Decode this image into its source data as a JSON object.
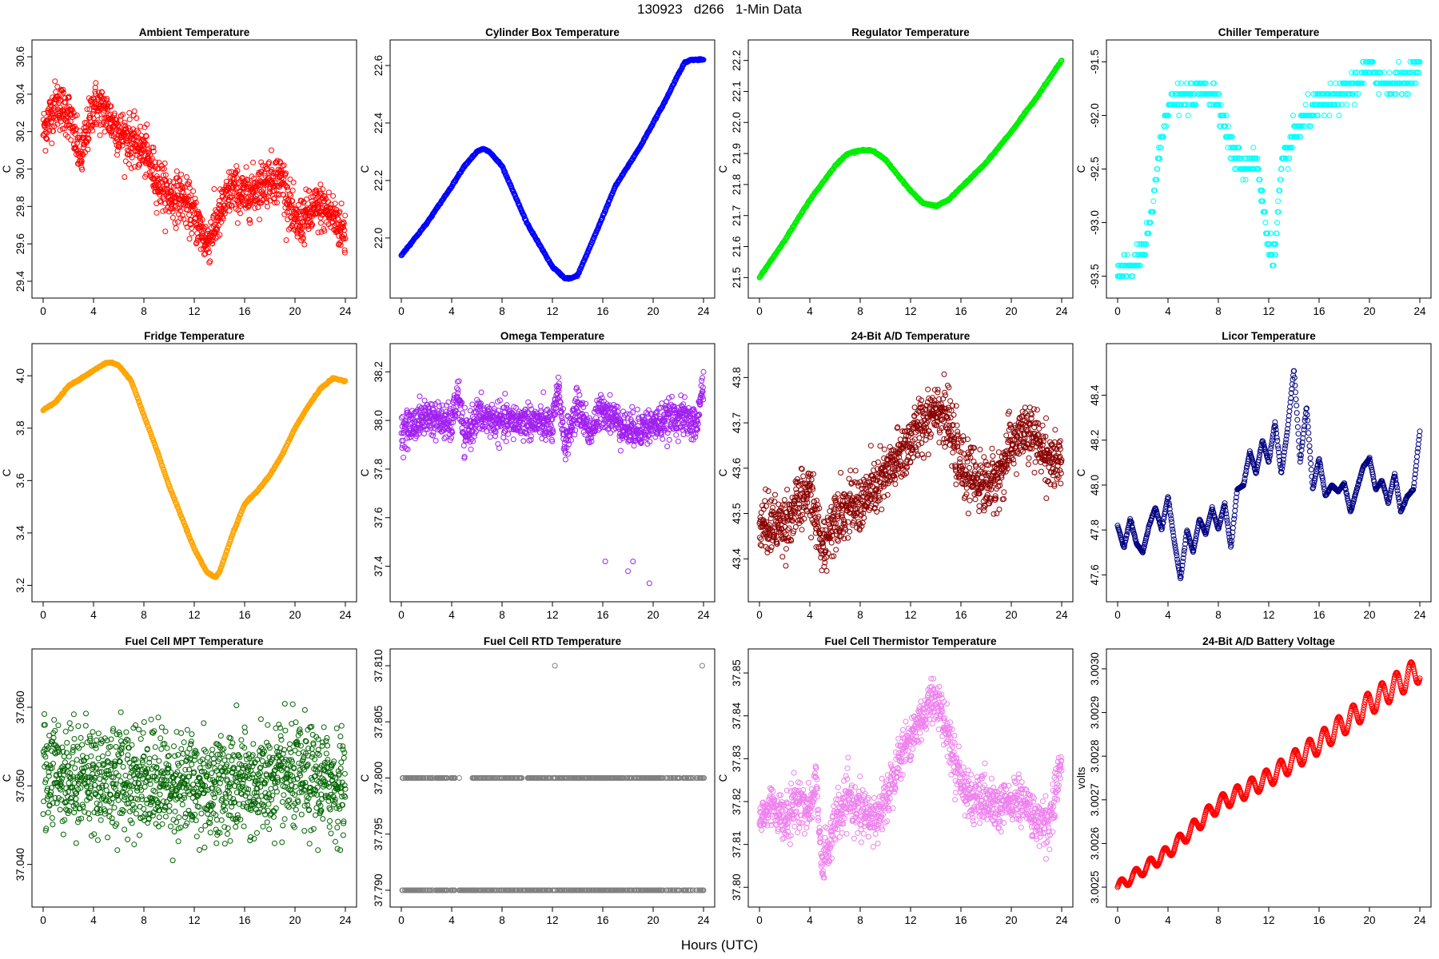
{
  "figure": {
    "title": "130923   d266   1-Min Data",
    "xlabel": "Hours (UTC)"
  },
  "chart_data": [
    {
      "type": "scatter",
      "title": "Ambient Temperature",
      "ylabel": "C",
      "color": "#ff0000",
      "xlim": [
        0,
        24
      ],
      "ylim": [
        29.37,
        30.63
      ],
      "xticks": [
        "0",
        "4",
        "8",
        "12",
        "16",
        "20",
        "24"
      ],
      "yticks": [
        "29.4",
        "29.6",
        "29.8",
        "30.0",
        "30.2",
        "30.4",
        "30.6"
      ],
      "x": [
        0,
        1,
        2,
        3,
        4,
        5,
        6,
        7,
        8,
        9,
        10,
        11,
        12,
        13,
        14,
        15,
        16,
        17,
        18,
        19,
        20,
        21,
        22,
        23,
        24
      ],
      "y": [
        30.2,
        30.35,
        30.3,
        30.05,
        30.35,
        30.3,
        30.2,
        30.15,
        30.1,
        29.95,
        29.85,
        29.85,
        29.75,
        29.6,
        29.75,
        29.9,
        29.85,
        29.9,
        29.95,
        29.95,
        29.7,
        29.75,
        29.8,
        29.75,
        29.65
      ],
      "spread": 0.14,
      "mode": "noisy"
    },
    {
      "type": "scatter",
      "title": "Cylinder Box Temperature",
      "ylabel": "C",
      "color": "#0000ff",
      "xlim": [
        0,
        24
      ],
      "ylim": [
        21.83,
        22.65
      ],
      "xticks": [
        "0",
        "4",
        "8",
        "12",
        "16",
        "20",
        "24"
      ],
      "yticks": [
        "22.0",
        "22.2",
        "22.4",
        "22.6"
      ],
      "x": [
        0,
        2,
        4,
        5,
        6,
        6.5,
        7,
        8,
        10,
        12,
        13,
        13.5,
        14,
        15,
        17,
        19,
        21,
        22,
        22.5,
        23,
        24
      ],
      "y": [
        21.94,
        22.05,
        22.18,
        22.25,
        22.3,
        22.31,
        22.3,
        22.25,
        22.05,
        21.9,
        21.86,
        21.86,
        21.87,
        21.97,
        22.18,
        22.32,
        22.48,
        22.57,
        22.61,
        22.62,
        22.62
      ],
      "spread": 0.0,
      "mode": "line"
    },
    {
      "type": "scatter",
      "title": "Regulator Temperature",
      "ylabel": "C",
      "color": "#00ee00",
      "xlim": [
        0,
        24
      ],
      "ylim": [
        21.47,
        22.23
      ],
      "xticks": [
        "0",
        "4",
        "8",
        "12",
        "16",
        "20",
        "24"
      ],
      "yticks": [
        "21.5",
        "21.6",
        "21.7",
        "21.8",
        "21.9",
        "22.0",
        "22.1",
        "22.2"
      ],
      "x": [
        0,
        2,
        4,
        6,
        7,
        8,
        9,
        10,
        11,
        12,
        13,
        14,
        15,
        16,
        18,
        20,
        22,
        23,
        24
      ],
      "y": [
        21.5,
        21.62,
        21.75,
        21.86,
        21.9,
        21.91,
        21.91,
        21.88,
        21.83,
        21.78,
        21.74,
        21.73,
        21.75,
        21.79,
        21.87,
        21.97,
        22.08,
        22.14,
        22.2
      ],
      "spread": 0.0,
      "mode": "line"
    },
    {
      "type": "scatter",
      "title": "Chiller Temperature",
      "ylabel": "C",
      "color": "#00ffff",
      "xlim": [
        0,
        24
      ],
      "ylim": [
        -93.6,
        -91.4
      ],
      "xticks": [
        "0",
        "4",
        "8",
        "12",
        "16",
        "20",
        "24"
      ],
      "yticks": [
        "-93.5",
        "-93.0",
        "-92.5",
        "-92.0",
        "-91.5"
      ],
      "x": [
        0,
        1,
        2,
        2.5,
        3,
        3.5,
        4,
        5,
        6,
        7,
        8,
        9,
        10,
        11,
        11.5,
        12,
        12.5,
        13,
        14,
        15,
        16,
        17,
        18,
        19,
        20,
        21,
        22,
        23,
        24
      ],
      "y": [
        -93.5,
        -93.4,
        -93.3,
        -93.1,
        -92.6,
        -92.2,
        -91.9,
        -91.85,
        -91.8,
        -91.75,
        -91.85,
        -92.3,
        -92.5,
        -92.4,
        -92.8,
        -93.2,
        -93.3,
        -92.5,
        -92.2,
        -92.0,
        -91.9,
        -91.85,
        -91.8,
        -91.7,
        -91.55,
        -91.7,
        -91.7,
        -91.65,
        -91.55
      ],
      "spread": 0.06,
      "mode": "quantized",
      "step": 0.1
    },
    {
      "type": "scatter",
      "title": "Fridge Temperature",
      "ylabel": "C",
      "color": "#ffa500",
      "xlim": [
        0,
        24
      ],
      "ylim": [
        3.18,
        4.08
      ],
      "xticks": [
        "0",
        "4",
        "8",
        "12",
        "16",
        "20",
        "24"
      ],
      "yticks": [
        "3.2",
        "3.4",
        "3.6",
        "3.8",
        "4.0"
      ],
      "x": [
        0,
        1,
        2,
        3,
        4,
        5,
        5.5,
        6,
        7,
        8,
        9,
        10,
        11,
        12,
        13,
        13.7,
        14,
        15,
        16,
        17,
        18,
        19,
        20,
        21,
        22,
        22.5,
        23,
        24
      ],
      "y": [
        3.87,
        3.9,
        3.96,
        3.99,
        4.02,
        4.05,
        4.05,
        4.04,
        3.98,
        3.85,
        3.72,
        3.58,
        3.46,
        3.34,
        3.25,
        3.23,
        3.25,
        3.39,
        3.51,
        3.56,
        3.62,
        3.7,
        3.8,
        3.88,
        3.95,
        3.97,
        3.99,
        3.98
      ],
      "spread": 0.0,
      "mode": "line"
    },
    {
      "type": "scatter",
      "title": "Omega Temperature",
      "ylabel": "C",
      "color": "#a020f0",
      "xlim": [
        0,
        24
      ],
      "ylim": [
        37.3,
        38.27
      ],
      "xticks": [
        "0",
        "4",
        "8",
        "12",
        "16",
        "20",
        "24"
      ],
      "yticks": [
        "37.4",
        "37.6",
        "37.8",
        "38.0",
        "38.2"
      ],
      "x": [
        0,
        2,
        4,
        4.5,
        5,
        6,
        8,
        10,
        12,
        12.5,
        13,
        14,
        15,
        16,
        18,
        20,
        22,
        23.5,
        24
      ],
      "y": [
        37.95,
        38.02,
        37.98,
        38.12,
        37.92,
        38.02,
        37.99,
        38.0,
        37.98,
        38.12,
        37.9,
        38.06,
        37.95,
        38.05,
        37.96,
        37.98,
        38.02,
        37.98,
        38.18
      ],
      "spread": 0.08,
      "mode": "noisy",
      "outliers": [
        [
          16.2,
          37.42
        ],
        [
          18.0,
          37.38
        ],
        [
          18.4,
          37.42
        ],
        [
          19.7,
          37.33
        ]
      ]
    },
    {
      "type": "scatter",
      "title": "24-Bit A/D Temperature",
      "ylabel": "C",
      "color": "#8b0000",
      "xlim": [
        0,
        24
      ],
      "ylim": [
        43.33,
        43.85
      ],
      "xticks": [
        "0",
        "4",
        "8",
        "12",
        "16",
        "20",
        "24"
      ],
      "yticks": [
        "43.4",
        "43.5",
        "43.6",
        "43.7",
        "43.8"
      ],
      "x": [
        0,
        2,
        4,
        5,
        6,
        8,
        10,
        12,
        13,
        14,
        15,
        16,
        17,
        18,
        19,
        20,
        21,
        22,
        23,
        24
      ],
      "y": [
        43.47,
        43.48,
        43.55,
        43.42,
        43.5,
        43.52,
        43.58,
        43.66,
        43.7,
        43.74,
        43.7,
        43.6,
        43.58,
        43.56,
        43.58,
        43.65,
        43.68,
        43.66,
        43.62,
        43.6
      ],
      "spread": 0.07,
      "mode": "noisy"
    },
    {
      "type": "scatter",
      "title": "Licor Temperature",
      "ylabel": "C",
      "color": "#000080",
      "xlim": [
        0,
        24
      ],
      "ylim": [
        47.53,
        48.58
      ],
      "xticks": [
        "0",
        "4",
        "8",
        "12",
        "16",
        "20",
        "24"
      ],
      "yticks": [
        "47.6",
        "47.8",
        "48.0",
        "48.2",
        "48.4"
      ],
      "x": [
        0,
        0.5,
        1,
        1.5,
        2,
        2.5,
        3,
        3.5,
        4,
        4.5,
        5,
        5.5,
        6,
        6.5,
        7,
        7.5,
        8,
        8.5,
        9,
        9.5,
        10,
        10.5,
        11,
        11.5,
        12,
        12.5,
        13,
        13.5,
        14,
        14.5,
        15,
        15.5,
        16,
        16.5,
        17,
        17.5,
        18,
        18.5,
        19,
        19.5,
        20,
        20.5,
        21,
        21.5,
        22,
        22.5,
        23,
        23.5,
        24
      ],
      "y": [
        47.82,
        47.72,
        47.85,
        47.74,
        47.7,
        47.82,
        47.9,
        47.8,
        47.95,
        47.75,
        47.58,
        47.8,
        47.7,
        47.85,
        47.78,
        47.9,
        47.8,
        47.92,
        47.72,
        47.98,
        48.0,
        48.15,
        48.05,
        48.2,
        48.1,
        48.28,
        48.05,
        48.25,
        48.52,
        48.1,
        48.35,
        47.98,
        48.12,
        47.95,
        48.0,
        47.97,
        48.01,
        47.88,
        47.98,
        48.08,
        48.12,
        47.98,
        48.02,
        47.92,
        48.05,
        47.88,
        47.95,
        47.98,
        48.24
      ],
      "spread": 0.0,
      "mode": "line"
    },
    {
      "type": "scatter",
      "title": "Fuel Cell MPT Temperature",
      "ylabel": "C",
      "color": "#006400",
      "xlim": [
        0,
        24
      ],
      "ylim": [
        37.036,
        37.066
      ],
      "xticks": [
        "0",
        "4",
        "8",
        "12",
        "16",
        "20",
        "24"
      ],
      "yticks": [
        "37.040",
        "37.050",
        "37.060"
      ],
      "x": [
        0,
        4,
        8,
        12,
        16,
        20,
        24
      ],
      "y": [
        37.052,
        37.051,
        37.051,
        37.05,
        37.05,
        37.051,
        37.05
      ],
      "spread": 0.0075,
      "mode": "noisy"
    },
    {
      "type": "scatter",
      "title": "Fuel Cell RTD Temperature",
      "ylabel": "C",
      "color": "#808080",
      "xlim": [
        0,
        24
      ],
      "ylim": [
        37.7895,
        37.8105
      ],
      "xticks": [
        "0",
        "4",
        "8",
        "12",
        "16",
        "20",
        "24"
      ],
      "yticks": [
        "37.790",
        "37.795",
        "37.800",
        "37.805",
        "37.810"
      ],
      "x": [
        0,
        24
      ],
      "y": [
        37.8,
        37.8
      ],
      "levels": [
        37.79,
        37.8
      ],
      "spread": 0.0,
      "mode": "bilevel",
      "outliers": [
        [
          12.2,
          37.81
        ],
        [
          23.9,
          37.81
        ]
      ]
    },
    {
      "type": "scatter",
      "title": "Fuel Cell Thermistor Temperature",
      "ylabel": "C",
      "color": "#ee82ee",
      "xlim": [
        0,
        24
      ],
      "ylim": [
        37.798,
        37.853
      ],
      "xticks": [
        "0",
        "4",
        "8",
        "12",
        "16",
        "20",
        "24"
      ],
      "yticks": [
        "37.80",
        "37.81",
        "37.82",
        "37.83",
        "37.84",
        "37.85"
      ],
      "x": [
        0,
        1,
        2,
        3,
        4,
        4.5,
        5,
        6,
        7,
        8,
        9,
        10,
        11,
        12,
        13,
        14,
        15,
        16,
        17,
        18,
        19,
        20,
        21,
        22,
        23,
        24
      ],
      "y": [
        37.815,
        37.82,
        37.815,
        37.82,
        37.818,
        37.825,
        37.805,
        37.815,
        37.82,
        37.818,
        37.815,
        37.82,
        37.83,
        37.835,
        37.84,
        37.845,
        37.835,
        37.825,
        37.82,
        37.82,
        37.818,
        37.82,
        37.82,
        37.815,
        37.815,
        37.83
      ],
      "spread": 0.006,
      "mode": "noisy"
    },
    {
      "type": "scatter",
      "title": "24-Bit A/D Battery Voltage",
      "ylabel": "volts",
      "color": "#ff0000",
      "xlim": [
        0,
        24
      ],
      "ylim": [
        3.00248,
        3.00302
      ],
      "xticks": [
        "0",
        "4",
        "8",
        "12",
        "16",
        "20",
        "24"
      ],
      "yticks": [
        "3.0025",
        "3.0026",
        "3.0027",
        "3.0028",
        "3.0029",
        "3.0030"
      ],
      "x": [
        0,
        4,
        8,
        12,
        16,
        20,
        24
      ],
      "y": [
        3.0025,
        3.00258,
        3.00269,
        3.00275,
        3.00283,
        3.00292,
        3.003
      ],
      "spread": 0.0,
      "mode": "wavy"
    }
  ]
}
